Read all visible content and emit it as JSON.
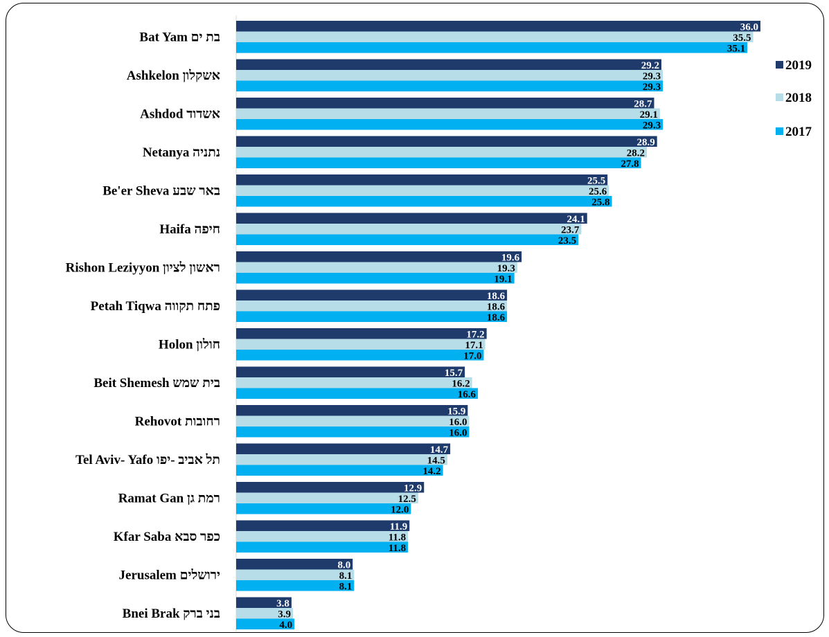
{
  "chart_data": {
    "type": "bar",
    "orientation": "horizontal",
    "title": "",
    "xlabel": "",
    "ylabel": "",
    "xlim": [
      0,
      38
    ],
    "grid": false,
    "legend_position": "right",
    "categories": [
      "Bat Yam בת ים",
      "Ashkelon אשקלון",
      "Ashdod אשדוד",
      "Netanya נתניה",
      "Be'er Sheva באר שבע",
      "Haifa חיפה",
      "Rishon Leziyyon ראשון לציון",
      "Petah Tiqwa פתח תקווה",
      "Holon חולון",
      "Beit Shemesh בית שמש",
      "Rehovot רחובות",
      "Tel Aviv- Yafo תל אביב -יפו",
      "Ramat Gan רמת גן",
      "Kfar Saba כפר סבא",
      "Jerusalem ירושלים",
      "Bnei Brak בני ברק"
    ],
    "series": [
      {
        "name": "2019",
        "color": "#1f3b6b",
        "label_color": "#ffffff",
        "values": [
          36.0,
          29.2,
          28.7,
          28.9,
          25.5,
          24.1,
          19.6,
          18.6,
          17.2,
          15.7,
          15.9,
          14.7,
          12.9,
          11.9,
          8.0,
          3.8
        ]
      },
      {
        "name": "2018",
        "color": "#b7dde8",
        "label_color": "#000000",
        "values": [
          35.5,
          29.3,
          29.1,
          28.2,
          25.6,
          23.7,
          19.3,
          18.6,
          17.1,
          16.2,
          16.0,
          14.5,
          12.5,
          11.8,
          8.1,
          3.9
        ]
      },
      {
        "name": "2017",
        "color": "#00b0f0",
        "label_color": "#000000",
        "values": [
          35.1,
          29.3,
          29.3,
          27.8,
          25.8,
          23.5,
          19.1,
          18.6,
          17.0,
          16.6,
          16.0,
          14.2,
          12.0,
          11.8,
          8.1,
          4.0
        ]
      }
    ]
  }
}
